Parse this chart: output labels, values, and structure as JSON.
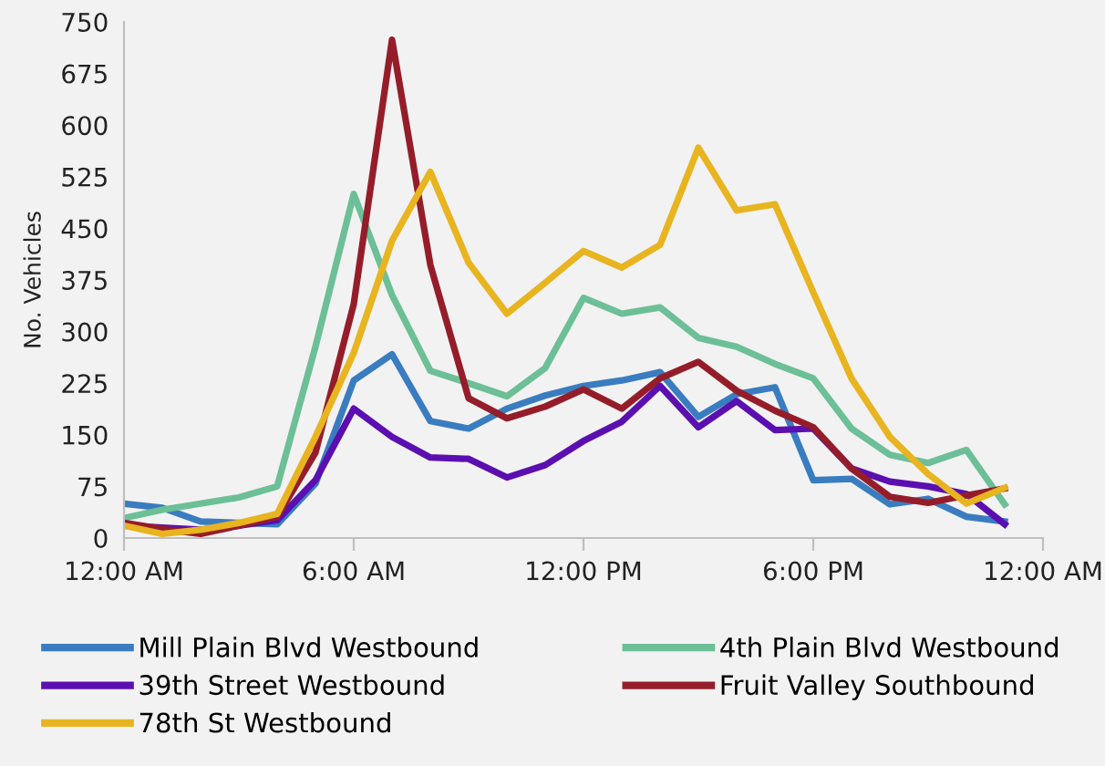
{
  "chart_data": {
    "type": "line",
    "ylabel": "No. Vehicles",
    "x": [
      0,
      1,
      2,
      3,
      4,
      5,
      6,
      7,
      8,
      9,
      10,
      11,
      12,
      13,
      14,
      15,
      16,
      17,
      18,
      19,
      20,
      21,
      22,
      23
    ],
    "xlim": [
      0,
      24
    ],
    "xticks": [
      {
        "value": 0,
        "label": "12:00 AM"
      },
      {
        "value": 6,
        "label": "6:00 AM"
      },
      {
        "value": 12,
        "label": "12:00 PM"
      },
      {
        "value": 18,
        "label": "6:00 PM"
      },
      {
        "value": 24,
        "label": "12:00 AM"
      }
    ],
    "ylim": [
      0,
      750
    ],
    "yticks": [
      0,
      75,
      150,
      225,
      300,
      375,
      450,
      525,
      600,
      675,
      750
    ],
    "grid": false,
    "legend": "bottom",
    "marker": "none",
    "line_style": "solid",
    "series": [
      {
        "name": "Mill Plain Blvd Westbound",
        "color": "#3a7cc0",
        "values": [
          50,
          44,
          24,
          22,
          20,
          79,
          229,
          267,
          170,
          159,
          188,
          207,
          221,
          229,
          241,
          176,
          209,
          219,
          84,
          86,
          49,
          57,
          31,
          24
        ]
      },
      {
        "name": "4th Plain Blvd Westbound",
        "color": "#6cbf96",
        "values": [
          29,
          41,
          50,
          59,
          75,
          278,
          500,
          353,
          243,
          225,
          206,
          247,
          349,
          326,
          335,
          291,
          278,
          253,
          232,
          159,
          121,
          109,
          128,
          49
        ]
      },
      {
        "name": "39th Street Westbound",
        "color": "#5b0fb0",
        "values": [
          18,
          15,
          12,
          18,
          26,
          84,
          188,
          147,
          117,
          115,
          88,
          106,
          141,
          169,
          221,
          161,
          199,
          157,
          159,
          101,
          82,
          75,
          64,
          20
        ]
      },
      {
        "name": "Fruit Valley Southbound",
        "color": "#951d2a",
        "values": [
          22,
          13,
          6,
          18,
          31,
          124,
          340,
          724,
          397,
          203,
          174,
          191,
          216,
          188,
          232,
          256,
          214,
          185,
          161,
          101,
          60,
          51,
          62,
          72
        ]
      },
      {
        "name": "78th St Westbound",
        "color": "#e8b41f",
        "values": [
          18,
          6,
          12,
          22,
          35,
          147,
          269,
          432,
          532,
          400,
          326,
          371,
          417,
          393,
          426,
          567,
          476,
          485,
          357,
          232,
          147,
          93,
          50,
          73
        ]
      }
    ]
  }
}
